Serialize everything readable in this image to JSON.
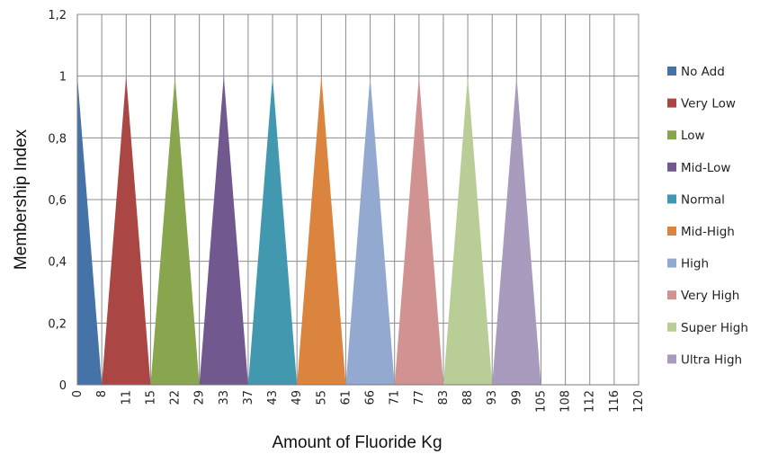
{
  "chart_data": {
    "type": "area",
    "title": "",
    "xlabel": "Amount of Fluoride Kg",
    "ylabel": "Membership Index",
    "x_categories": [
      "0",
      "8",
      "11",
      "15",
      "22",
      "29",
      "33",
      "37",
      "43",
      "49",
      "55",
      "61",
      "66",
      "71",
      "77",
      "83",
      "88",
      "93",
      "99",
      "105",
      "108",
      "112",
      "116",
      "120"
    ],
    "y_ticks": [
      "0",
      "0,2",
      "0,4",
      "0,6",
      "0,8",
      "1",
      "1,2"
    ],
    "ylim": [
      0,
      1.2
    ],
    "grid": true,
    "legend_position": "right",
    "series": [
      {
        "name": "No Add",
        "color": "#4572A7",
        "points": [
          [
            0,
            1
          ],
          [
            1,
            0
          ]
        ]
      },
      {
        "name": "Very Low",
        "color": "#AA4643",
        "points": [
          [
            1,
            0
          ],
          [
            2,
            1
          ],
          [
            3,
            0
          ]
        ]
      },
      {
        "name": "Low",
        "color": "#89A54E",
        "points": [
          [
            3,
            0
          ],
          [
            4,
            1
          ],
          [
            5,
            0
          ]
        ]
      },
      {
        "name": "Mid-Low",
        "color": "#71588F",
        "points": [
          [
            5,
            0
          ],
          [
            6,
            1
          ],
          [
            7,
            0
          ]
        ]
      },
      {
        "name": "Normal",
        "color": "#4198AF",
        "points": [
          [
            7,
            0
          ],
          [
            8,
            1
          ],
          [
            9,
            0
          ]
        ]
      },
      {
        "name": "Mid-High",
        "color": "#DB843D",
        "points": [
          [
            9,
            0
          ],
          [
            10,
            1
          ],
          [
            11,
            0
          ]
        ]
      },
      {
        "name": "High",
        "color": "#93A9CF",
        "points": [
          [
            11,
            0
          ],
          [
            12,
            1
          ],
          [
            13,
            0
          ]
        ]
      },
      {
        "name": "Very High",
        "color": "#D19392",
        "points": [
          [
            13,
            0
          ],
          [
            14,
            1
          ],
          [
            15,
            0
          ]
        ]
      },
      {
        "name": "Super High",
        "color": "#B9CD96",
        "points": [
          [
            15,
            0
          ],
          [
            16,
            1
          ],
          [
            17,
            0
          ]
        ]
      },
      {
        "name": "Ultra High",
        "color": "#A99BBD",
        "points": [
          [
            17,
            0
          ],
          [
            18,
            1
          ],
          [
            19,
            0
          ]
        ]
      }
    ]
  }
}
